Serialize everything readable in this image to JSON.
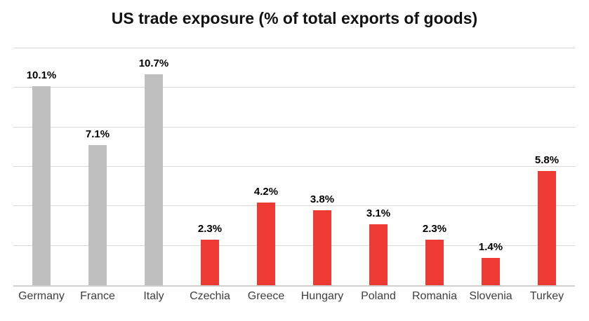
{
  "chart_data": {
    "type": "bar",
    "title": "US trade exposure (% of total exports of goods)",
    "categories": [
      "Germany",
      "France",
      "Italy",
      "Czechia",
      "Greece",
      "Hungary",
      "Poland",
      "Romania",
      "Slovenia",
      "Turkey"
    ],
    "values": [
      10.1,
      7.1,
      10.7,
      2.3,
      4.2,
      3.8,
      3.1,
      2.3,
      1.4,
      5.8
    ],
    "data_labels": [
      "10.1%",
      "7.1%",
      "10.7%",
      "2.3%",
      "4.2%",
      "3.8%",
      "3.1%",
      "2.3%",
      "1.4%",
      "5.8%"
    ],
    "bar_colors": [
      "#BFBFBF",
      "#BFBFBF",
      "#BFBFBF",
      "#ED3B33",
      "#ED3B33",
      "#ED3B33",
      "#ED3B33",
      "#ED3B33",
      "#ED3B33",
      "#ED3B33"
    ],
    "xlabel": "",
    "ylabel": "",
    "ylim": [
      0,
      12
    ],
    "gridline_step": 2,
    "grid": true,
    "legend": "none",
    "y_axis_tick_labels_visible": false,
    "colors": {
      "gray_bar": "#BFBFBF",
      "red_bar": "#ED3B33",
      "gridline": "#D9D9D9",
      "axis_line": "#D0D0D0",
      "title_text": "#111111",
      "data_label_text": "#000000",
      "category_label_text": "#404040",
      "background": "#FFFFFF"
    }
  }
}
